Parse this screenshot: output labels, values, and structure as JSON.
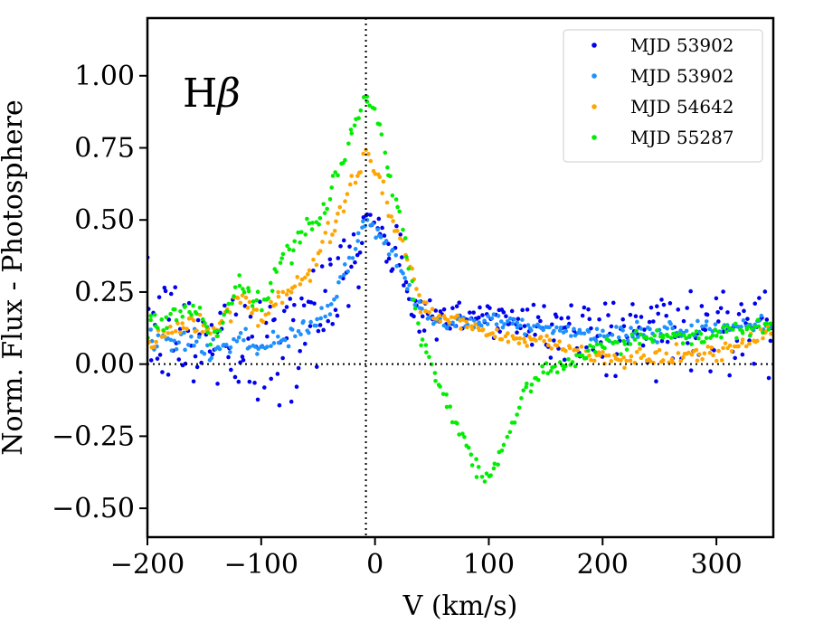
{
  "chart_data": {
    "type": "scatter",
    "xlabel": "V (km/s)",
    "ylabel": "Norm. Flux - Photosphere",
    "panel_label": {
      "main": "H",
      "greek": "β"
    },
    "xlim": [
      -200,
      350
    ],
    "ylim": [
      -0.6,
      1.2
    ],
    "xticks": [
      -200,
      -100,
      0,
      100,
      200,
      300
    ],
    "xtick_labels": [
      "−200",
      "−100",
      "0",
      "100",
      "200",
      "300"
    ],
    "yticks": [
      -0.5,
      -0.25,
      0.0,
      0.25,
      0.5,
      0.75,
      1.0
    ],
    "ytick_labels": [
      "−0.50",
      "−0.25",
      "0.00",
      "0.25",
      "0.50",
      "0.75",
      "1.00"
    ],
    "reference_lines": {
      "horizontal_y": 0.0,
      "vertical_x": -8
    },
    "legend_position": "top-right",
    "series": [
      {
        "name": "MJD 53902",
        "color": "#0000ee",
        "x": [
          -200,
          -180,
          -160,
          -140,
          -120,
          -100,
          -80,
          -60,
          -40,
          -20,
          -8,
          0,
          20,
          40,
          60,
          80,
          100,
          120,
          150,
          200,
          250,
          300,
          350
        ],
        "y": [
          0.12,
          0.1,
          0.07,
          0.08,
          0.1,
          0.07,
          0.11,
          0.15,
          0.22,
          0.38,
          0.5,
          0.47,
          0.35,
          0.18,
          0.14,
          0.15,
          0.16,
          0.16,
          0.13,
          0.11,
          0.12,
          0.13,
          0.15
        ],
        "scatter": [
          0.09,
          0.1,
          0.1,
          0.08,
          0.1,
          0.12,
          0.13,
          0.12,
          0.1,
          0.08,
          0.05,
          0.05,
          0.05,
          0.05,
          0.04,
          0.04,
          0.04,
          0.04,
          0.05,
          0.06,
          0.07,
          0.07,
          0.07
        ]
      },
      {
        "name": "MJD 53902",
        "color": "#1e90ff",
        "x": [
          -200,
          -180,
          -160,
          -140,
          -120,
          -100,
          -80,
          -60,
          -40,
          -20,
          -8,
          0,
          20,
          40,
          60,
          80,
          100,
          120,
          150,
          200,
          250,
          300,
          350
        ],
        "y": [
          0.1,
          0.09,
          0.07,
          0.06,
          0.09,
          0.05,
          0.08,
          0.13,
          0.2,
          0.37,
          0.49,
          0.47,
          0.35,
          0.18,
          0.14,
          0.15,
          0.15,
          0.15,
          0.12,
          0.1,
          0.11,
          0.12,
          0.14
        ],
        "scatter": [
          0.02,
          0.02,
          0.02,
          0.02,
          0.02,
          0.02,
          0.02,
          0.02,
          0.02,
          0.02,
          0.015,
          0.015,
          0.015,
          0.015,
          0.012,
          0.012,
          0.012,
          0.012,
          0.012,
          0.015,
          0.015,
          0.015,
          0.015
        ]
      },
      {
        "name": "MJD 54642",
        "color": "#ffa500",
        "x": [
          -200,
          -180,
          -160,
          -140,
          -120,
          -100,
          -80,
          -60,
          -40,
          -20,
          -8,
          0,
          20,
          40,
          60,
          80,
          100,
          120,
          150,
          200,
          250,
          300,
          350
        ],
        "y": [
          0.07,
          0.12,
          0.14,
          0.1,
          0.25,
          0.15,
          0.25,
          0.3,
          0.45,
          0.62,
          0.73,
          0.68,
          0.45,
          0.2,
          0.16,
          0.14,
          0.1,
          0.09,
          0.08,
          0.02,
          0.02,
          0.04,
          0.1
        ],
        "scatter": [
          0.02,
          0.02,
          0.02,
          0.02,
          0.02,
          0.02,
          0.02,
          0.02,
          0.02,
          0.02,
          0.015,
          0.015,
          0.015,
          0.015,
          0.012,
          0.012,
          0.012,
          0.012,
          0.012,
          0.015,
          0.015,
          0.015,
          0.015
        ]
      },
      {
        "name": "MJD 55287",
        "color": "#00ee00",
        "x": [
          -200,
          -180,
          -160,
          -140,
          -120,
          -100,
          -80,
          -60,
          -40,
          -20,
          -8,
          0,
          20,
          40,
          60,
          80,
          95,
          110,
          130,
          150,
          170,
          200,
          250,
          300,
          350
        ],
        "y": [
          0.13,
          0.16,
          0.18,
          0.1,
          0.28,
          0.2,
          0.38,
          0.46,
          0.58,
          0.8,
          0.93,
          0.88,
          0.55,
          0.1,
          -0.1,
          -0.28,
          -0.41,
          -0.33,
          -0.1,
          -0.02,
          0.0,
          0.06,
          0.1,
          0.1,
          0.15
        ],
        "scatter": [
          0.02,
          0.02,
          0.02,
          0.02,
          0.02,
          0.02,
          0.02,
          0.02,
          0.02,
          0.02,
          0.015,
          0.015,
          0.015,
          0.015,
          0.012,
          0.012,
          0.012,
          0.012,
          0.012,
          0.015,
          0.015,
          0.015,
          0.015,
          0.015,
          0.015
        ]
      }
    ]
  }
}
